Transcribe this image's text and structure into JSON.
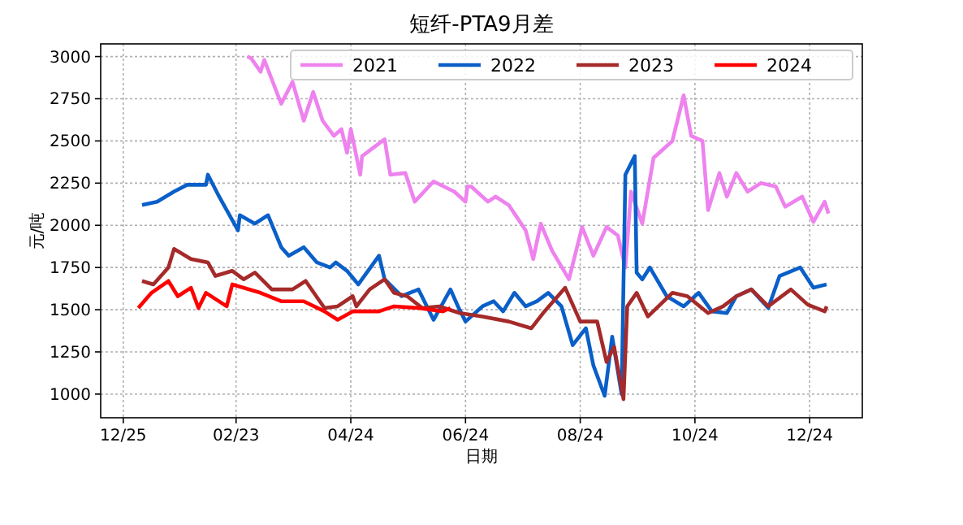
{
  "chart_data": {
    "type": "line",
    "title": "短纤-PTA9月差",
    "xlabel": "日期",
    "ylabel": "元/吨",
    "xlim": [
      "2023-12-13",
      "2025-01-21"
    ],
    "ylim": [
      860,
      3075
    ],
    "xticks": [
      {
        "value": "2023-12-25",
        "label": "12/25"
      },
      {
        "value": "2024-02-23",
        "label": "02/23"
      },
      {
        "value": "2024-04-24",
        "label": "04/24"
      },
      {
        "value": "2024-06-24",
        "label": "06/24"
      },
      {
        "value": "2024-08-24",
        "label": "08/24"
      },
      {
        "value": "2024-10-24",
        "label": "10/24"
      },
      {
        "value": "2024-12-24",
        "label": "12/24"
      }
    ],
    "yticks": [
      1000,
      1250,
      1500,
      1750,
      2000,
      2250,
      2500,
      2750,
      3000
    ],
    "grid": true,
    "legend": "top right",
    "series": [
      {
        "name": "2021",
        "color": "#ee82ee",
        "x": [
          "2024-02-29",
          "2024-03-02",
          "2024-03-07",
          "2024-03-09",
          "2024-03-18",
          "2024-03-24",
          "2024-03-30",
          "2024-04-04",
          "2024-04-09",
          "2024-04-15",
          "2024-04-19",
          "2024-04-22",
          "2024-04-24",
          "2024-04-29",
          "2024-04-30",
          "2024-05-12",
          "2024-05-15",
          "2024-05-23",
          "2024-05-28",
          "2024-06-07",
          "2024-06-18",
          "2024-06-24",
          "2024-06-25",
          "2024-06-27",
          "2024-07-06",
          "2024-07-10",
          "2024-07-17",
          "2024-07-26",
          "2024-07-30",
          "2024-08-03",
          "2024-08-09",
          "2024-08-18",
          "2024-08-25",
          "2024-08-31",
          "2024-09-07",
          "2024-09-13",
          "2024-09-17",
          "2024-09-20",
          "2024-09-26",
          "2024-10-02",
          "2024-10-12",
          "2024-10-18",
          "2024-10-22",
          "2024-10-28",
          "2024-10-31",
          "2024-11-06",
          "2024-11-10",
          "2024-11-15",
          "2024-11-21",
          "2024-11-28",
          "2024-12-06",
          "2024-12-11",
          "2024-12-20",
          "2024-12-26",
          "2025-01-01",
          "2025-01-03"
        ],
        "values": [
          3000,
          2990,
          2910,
          2980,
          2720,
          2850,
          2620,
          2790,
          2620,
          2530,
          2570,
          2430,
          2570,
          2300,
          2410,
          2510,
          2300,
          2310,
          2140,
          2260,
          2200,
          2140,
          2230,
          2230,
          2140,
          2170,
          2120,
          1970,
          1800,
          2010,
          1850,
          1680,
          1990,
          1820,
          1990,
          1940,
          1750,
          2200,
          2010,
          2400,
          2500,
          2770,
          2530,
          2500,
          2090,
          2310,
          2170,
          2310,
          2200,
          2250,
          2230,
          2110,
          2170,
          2020,
          2140,
          2070
        ]
      },
      {
        "name": "2022",
        "color": "#0a5fc8",
        "x": [
          "2024-01-04",
          "2024-01-12",
          "2024-01-21",
          "2024-01-28",
          "2024-02-07",
          "2024-02-08",
          "2024-02-14",
          "2024-02-24",
          "2024-02-25",
          "2024-03-04",
          "2024-03-11",
          "2024-03-18",
          "2024-03-22",
          "2024-03-30",
          "2024-04-06",
          "2024-04-13",
          "2024-04-16",
          "2024-04-22",
          "2024-04-28",
          "2024-05-09",
          "2024-05-12",
          "2024-05-21",
          "2024-05-30",
          "2024-06-07",
          "2024-06-16",
          "2024-06-20",
          "2024-06-24",
          "2024-07-03",
          "2024-07-09",
          "2024-07-14",
          "2024-07-20",
          "2024-07-26",
          "2024-08-01",
          "2024-08-07",
          "2024-08-14",
          "2024-08-20",
          "2024-08-27",
          "2024-08-31",
          "2024-09-06",
          "2024-09-10",
          "2024-09-15",
          "2024-09-17",
          "2024-09-22",
          "2024-09-23",
          "2024-09-26",
          "2024-09-30",
          "2024-10-09",
          "2024-10-18",
          "2024-10-26",
          "2024-11-02",
          "2024-11-10",
          "2024-11-15",
          "2024-11-23",
          "2024-12-02",
          "2024-12-08",
          "2024-12-19",
          "2024-12-26",
          "2025-01-02"
        ],
        "values": [
          2120,
          2140,
          2200,
          2240,
          2240,
          2300,
          2170,
          1970,
          2060,
          2010,
          2060,
          1870,
          1820,
          1870,
          1780,
          1750,
          1780,
          1730,
          1650,
          1820,
          1680,
          1580,
          1620,
          1440,
          1620,
          1520,
          1430,
          1520,
          1550,
          1490,
          1600,
          1520,
          1550,
          1600,
          1520,
          1290,
          1390,
          1170,
          990,
          1340,
          1000,
          2300,
          2410,
          1720,
          1680,
          1750,
          1580,
          1520,
          1600,
          1490,
          1480,
          1580,
          1620,
          1510,
          1700,
          1750,
          1630,
          1650
        ]
      },
      {
        "name": "2023",
        "color": "#a52a2a",
        "x": [
          "2024-01-04",
          "2024-01-10",
          "2024-01-18",
          "2024-01-21",
          "2024-01-30",
          "2024-02-08",
          "2024-02-12",
          "2024-02-21",
          "2024-02-27",
          "2024-03-04",
          "2024-03-13",
          "2024-03-24",
          "2024-03-31",
          "2024-04-10",
          "2024-04-17",
          "2024-04-25",
          "2024-04-27",
          "2024-05-04",
          "2024-05-12",
          "2024-05-17",
          "2024-05-24",
          "2024-06-01",
          "2024-06-10",
          "2024-06-21",
          "2024-07-03",
          "2024-07-17",
          "2024-07-29",
          "2024-08-05",
          "2024-08-16",
          "2024-08-24",
          "2024-09-02",
          "2024-09-07",
          "2024-09-11",
          "2024-09-16",
          "2024-09-18",
          "2024-09-23",
          "2024-09-29",
          "2024-10-12",
          "2024-10-20",
          "2024-10-31",
          "2024-11-08",
          "2024-11-15",
          "2024-11-23",
          "2024-12-02",
          "2024-12-14",
          "2024-12-23",
          "2025-01-01",
          "2025-01-02"
        ],
        "values": [
          1670,
          1650,
          1750,
          1860,
          1800,
          1780,
          1700,
          1730,
          1680,
          1720,
          1620,
          1620,
          1670,
          1510,
          1520,
          1580,
          1520,
          1620,
          1680,
          1600,
          1580,
          1510,
          1520,
          1480,
          1460,
          1430,
          1390,
          1490,
          1630,
          1430,
          1430,
          1190,
          1280,
          970,
          1520,
          1600,
          1460,
          1600,
          1580,
          1480,
          1520,
          1580,
          1620,
          1520,
          1620,
          1530,
          1490,
          1520
        ]
      },
      {
        "name": "2024",
        "color": "#ff0000",
        "x": [
          "2024-01-02",
          "2024-01-09",
          "2024-01-18",
          "2024-01-23",
          "2024-01-30",
          "2024-02-03",
          "2024-02-07",
          "2024-02-18",
          "2024-02-21",
          "2024-03-07",
          "2024-03-18",
          "2024-03-30",
          "2024-04-10",
          "2024-04-17",
          "2024-04-25",
          "2024-05-09",
          "2024-05-17",
          "2024-05-30",
          "2024-06-12",
          "2024-06-16"
        ],
        "values": [
          1510,
          1600,
          1670,
          1580,
          1630,
          1510,
          1600,
          1520,
          1650,
          1600,
          1550,
          1550,
          1490,
          1440,
          1490,
          1490,
          1520,
          1510,
          1490,
          1510
        ]
      }
    ]
  }
}
